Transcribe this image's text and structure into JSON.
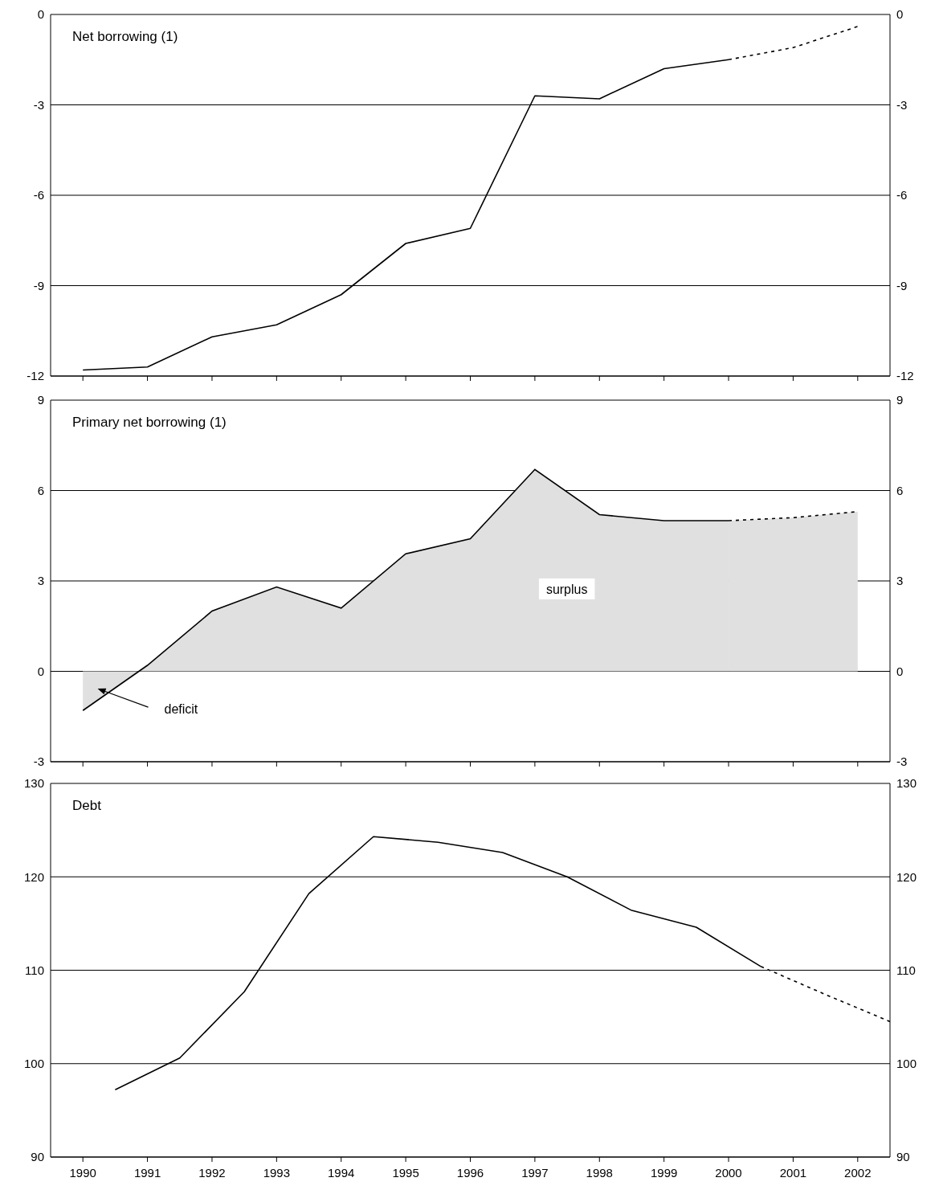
{
  "chart_data": [
    {
      "type": "line",
      "title": "Net borrowing (1)",
      "x": [
        1990,
        1991,
        1992,
        1993,
        1994,
        1995,
        1996,
        1997,
        1998,
        1999,
        2000,
        2001,
        2002
      ],
      "xlim": [
        1989.5,
        2002.5
      ],
      "xticks": [
        1990,
        1991,
        1992,
        1993,
        1994,
        1995,
        1996,
        1997,
        1998,
        1999,
        2000,
        2001,
        2002
      ],
      "ylim": [
        -12,
        0
      ],
      "yticks": [
        -12,
        -9,
        -6,
        -3,
        0
      ],
      "y2lim": [
        -12,
        0
      ],
      "y2ticks": [
        -12,
        -9,
        -6,
        -3,
        0
      ],
      "grid": "y",
      "tick_labels": "y",
      "series": [
        {
          "color": "#000000",
          "values": [
            -11.8,
            -11.7,
            -10.7,
            -10.3,
            -9.3,
            -7.6,
            -7.1,
            -2.7,
            -2.8,
            -1.8,
            -1.5,
            null,
            null
          ]
        },
        {
          "color": "#000000",
          "line_style": "dashed",
          "values": [
            null,
            null,
            null,
            null,
            null,
            null,
            null,
            null,
            null,
            null,
            -1.5,
            -1.1,
            -0.4
          ]
        }
      ]
    },
    {
      "type": "area",
      "title": "Primary net borrowing (1)",
      "x": [
        1990,
        1991,
        1992,
        1993,
        1994,
        1995,
        1996,
        1997,
        1998,
        1999,
        2000,
        2001,
        2002
      ],
      "xlim": [
        1989.5,
        2002.5
      ],
      "xticks": [
        1990,
        1991,
        1992,
        1993,
        1994,
        1995,
        1996,
        1997,
        1998,
        1999,
        2000,
        2001,
        2002
      ],
      "ylim": [
        -3,
        9
      ],
      "yticks": [
        -3,
        0,
        3,
        6,
        9
      ],
      "y2lim": [
        -3,
        9
      ],
      "y2ticks": [
        -3,
        0,
        3,
        6,
        9
      ],
      "grid": "y",
      "tick_labels": "y",
      "series": [
        {
          "color": "#e0e0e0",
          "values": [
            -1.3,
            0.2,
            2.0,
            2.8,
            2.1,
            3.9,
            4.4,
            6.7,
            5.2,
            5.0,
            5.0,
            null,
            null
          ]
        },
        {
          "color": "#e0e0e0",
          "line_style": "dashed",
          "values": [
            null,
            null,
            null,
            null,
            null,
            null,
            null,
            null,
            null,
            null,
            5.0,
            5.1,
            5.3
          ]
        }
      ],
      "annotations": [
        "surplus",
        "deficit"
      ]
    },
    {
      "type": "line",
      "title": "Debt",
      "x": [
        1990.5,
        1991.5,
        1992.5,
        1993.5,
        1994.5,
        1995.5,
        1996.5,
        1997.5,
        1998.5,
        1999.5,
        2000.5,
        2001.5,
        2002.5
      ],
      "xlim": [
        1989.5,
        2002.5
      ],
      "xticks": [
        1990,
        1991,
        1992,
        1993,
        1994,
        1995,
        1996,
        1997,
        1998,
        1999,
        2000,
        2001,
        2002
      ],
      "ylim": [
        90,
        130
      ],
      "yticks": [
        90,
        100,
        110,
        120,
        130
      ],
      "y2lim": [
        90,
        130
      ],
      "y2ticks": [
        90,
        100,
        110,
        120,
        130
      ],
      "grid": "y",
      "series": [
        {
          "color": "#000000",
          "values": [
            97.2,
            100.6,
            107.7,
            118.2,
            124.3,
            123.7,
            122.6,
            120.0,
            116.4,
            114.6,
            110.4,
            null,
            null
          ]
        },
        {
          "color": "#000000",
          "line_style": "dashed",
          "values": [
            null,
            null,
            null,
            null,
            null,
            null,
            null,
            null,
            null,
            null,
            110.4,
            107.4,
            104.5
          ]
        }
      ]
    }
  ]
}
